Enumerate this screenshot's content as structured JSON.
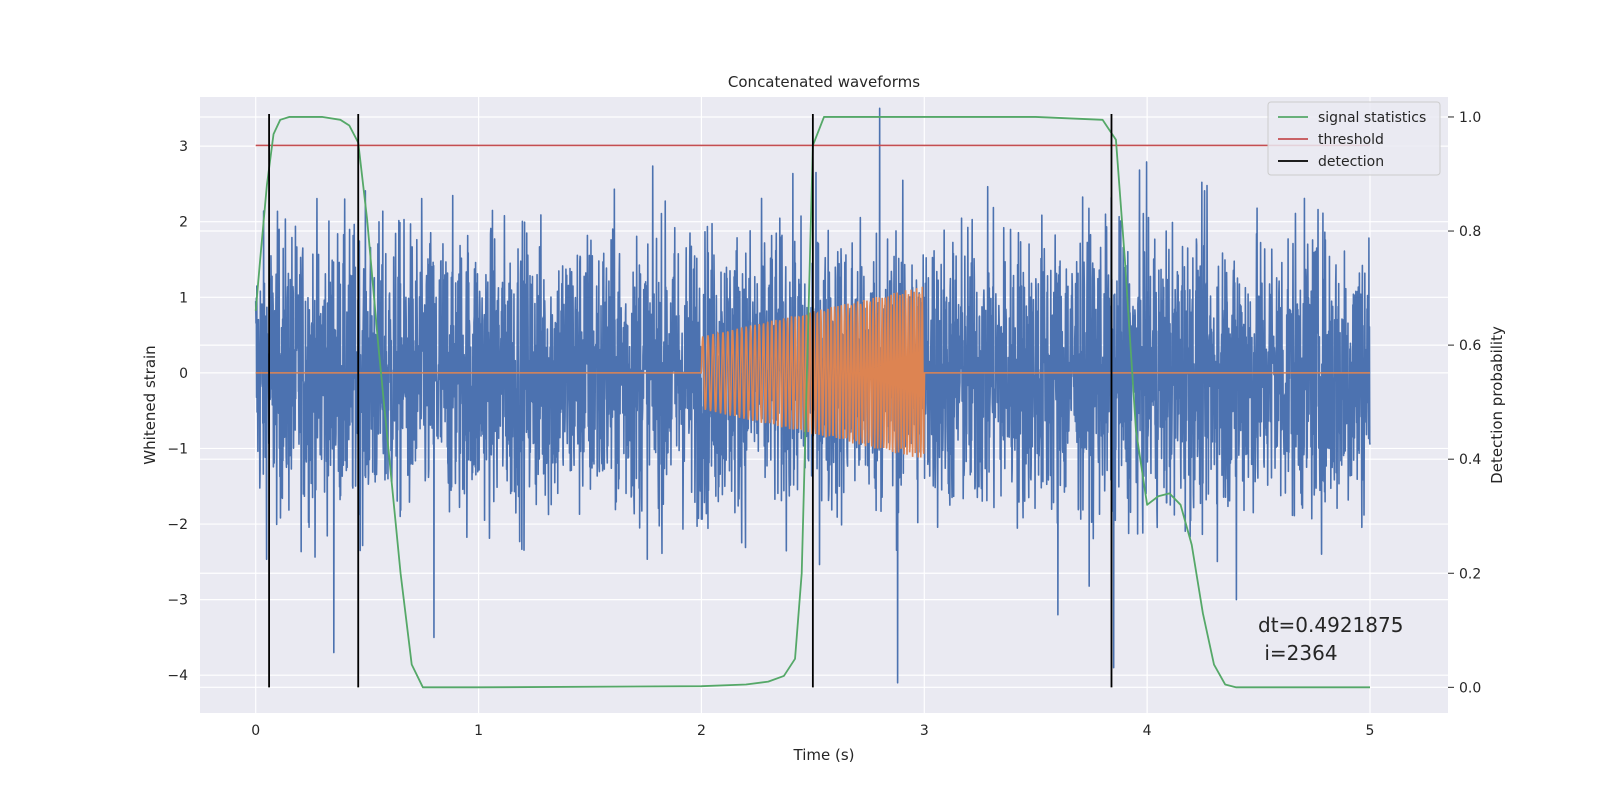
{
  "chart_data": {
    "type": "line",
    "title": "Concatenated waveforms",
    "xlabel": "Time (s)",
    "ylabel": "Whitened strain",
    "ylabel_right": "Detection probability",
    "xlim": [
      -0.25,
      5.35
    ],
    "ylim": [
      -4.5,
      3.65
    ],
    "ylim_right": [
      -0.045,
      1.035
    ],
    "x_ticks": [
      0,
      1,
      2,
      3,
      4,
      5
    ],
    "x_tick_labels": [
      "0",
      "1",
      "2",
      "3",
      "4",
      "5"
    ],
    "y_ticks": [
      -4,
      -3,
      -2,
      -1,
      0,
      1,
      2,
      3
    ],
    "y_tick_labels": [
      "−4",
      "−3",
      "−2",
      "−1",
      "0",
      "1",
      "2",
      "3"
    ],
    "y_right_ticks": [
      0.0,
      0.2,
      0.4,
      0.6,
      0.8,
      1.0
    ],
    "y_right_tick_labels": [
      "0.0",
      "0.2",
      "0.4",
      "0.6",
      "0.8",
      "1.0"
    ],
    "grid": true,
    "legend_position": "top-right",
    "annotation": [
      "dt=0.4921875",
      " i=2364"
    ],
    "series": [
      {
        "name": "",
        "kind": "noise",
        "color": "#4c72b0",
        "x_range": [
          0,
          5
        ],
        "amplitude_typical": 1.0,
        "peaks": [
          [
            0.35,
            -3.7
          ],
          [
            0.8,
            -3.5
          ],
          [
            2.8,
            3.5
          ],
          [
            2.88,
            -4.1
          ],
          [
            3.6,
            -3.2
          ],
          [
            3.85,
            -3.9
          ],
          [
            4.4,
            -3.0
          ]
        ]
      },
      {
        "name": "",
        "kind": "chirp",
        "color": "#dd8452",
        "x_range": [
          0,
          5
        ],
        "chirp_start": 2.0,
        "chirp_end": 3.0,
        "amplitude_start": 0.48,
        "amplitude_end": 1.15
      },
      {
        "name": "signal statistics",
        "color": "#55a868",
        "x": [
          0.0,
          0.02,
          0.05,
          0.08,
          0.11,
          0.15,
          0.2,
          0.3,
          0.38,
          0.42,
          0.46,
          0.5,
          0.55,
          0.6,
          0.65,
          0.7,
          0.75,
          1.0,
          2.0,
          2.2,
          2.3,
          2.37,
          2.42,
          2.45,
          2.47,
          2.5,
          2.55,
          2.6,
          3.0,
          3.5,
          3.8,
          3.86,
          3.9,
          3.95,
          4.0,
          4.05,
          4.1,
          4.15,
          4.2,
          4.25,
          4.3,
          4.35,
          4.4,
          5.0
        ],
        "y": [
          0.66,
          0.75,
          0.88,
          0.97,
          0.995,
          1.0,
          1.0,
          1.0,
          0.995,
          0.985,
          0.955,
          0.82,
          0.6,
          0.4,
          0.2,
          0.04,
          0.0,
          0.0,
          0.002,
          0.005,
          0.01,
          0.02,
          0.05,
          0.2,
          0.5,
          0.95,
          1.0,
          1.0,
          1.0,
          1.0,
          0.995,
          0.96,
          0.75,
          0.45,
          0.32,
          0.335,
          0.34,
          0.32,
          0.25,
          0.13,
          0.04,
          0.005,
          0.0,
          0.0
        ]
      },
      {
        "name": "threshold",
        "color": "#c44e52",
        "x": [
          0,
          5
        ],
        "y": [
          0.95,
          0.95
        ]
      },
      {
        "name": "detection",
        "color": "#000000",
        "x": [
          0.06,
          0.46,
          2.5,
          3.84
        ]
      }
    ]
  }
}
